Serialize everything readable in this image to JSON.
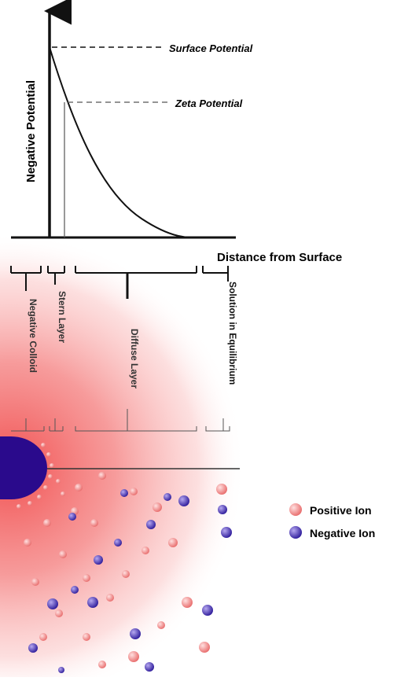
{
  "graph": {
    "y_axis_label": "Negative Potential",
    "x_axis_label": "Distance from Surface",
    "surface_potential_label": "Surface Potential",
    "zeta_potential_label": "Zeta Potential"
  },
  "regions": {
    "negative_colloid": "Negative Colloid",
    "stern_layer": "Stern Layer",
    "diffuse_layer": "Diffuse Layer",
    "solution_equilibrium": "Solution in Equilibrium"
  },
  "legend": {
    "positive_ion": "Positive Ion",
    "negative_ion": "Negative Ion"
  },
  "colors": {
    "positive_ion": "#f08a8a",
    "negative_ion": "#3d2fa8",
    "colloid": "#2a0a8c",
    "cloud": "#f26a6a"
  }
}
